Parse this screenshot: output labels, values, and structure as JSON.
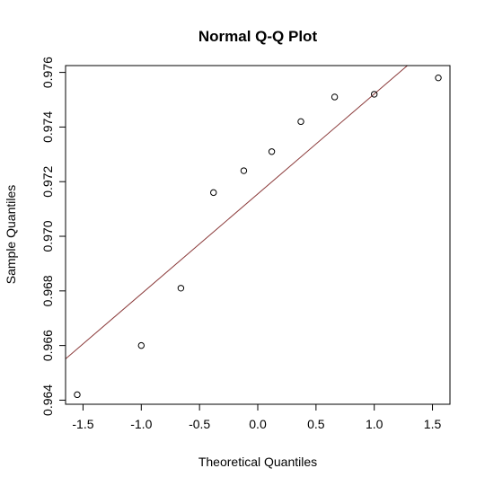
{
  "chart_data": {
    "type": "scatter",
    "title": "Normal Q-Q Plot",
    "xlabel": "Theoretical Quantiles",
    "ylabel": "Sample Quantiles",
    "xlim": [
      -1.65,
      1.65
    ],
    "ylim": [
      0.96385,
      0.97625
    ],
    "xticks": [
      -1.5,
      -1.0,
      -0.5,
      0.0,
      0.5,
      1.0,
      1.5
    ],
    "xtick_labels": [
      "-1.5",
      "-1.0",
      "-0.5",
      "0.0",
      "0.5",
      "1.0",
      "1.5"
    ],
    "yticks": [
      0.964,
      0.966,
      0.968,
      0.97,
      0.972,
      0.974,
      0.976
    ],
    "ytick_labels": [
      "0.964",
      "0.966",
      "0.968",
      "0.970",
      "0.972",
      "0.974",
      "0.976"
    ],
    "grid": false,
    "points": [
      {
        "x": -1.55,
        "y": 0.9642
      },
      {
        "x": -1.0,
        "y": 0.966
      },
      {
        "x": -0.66,
        "y": 0.9681
      },
      {
        "x": -0.38,
        "y": 0.9716
      },
      {
        "x": -0.12,
        "y": 0.9724
      },
      {
        "x": 0.12,
        "y": 0.9731
      },
      {
        "x": 0.37,
        "y": 0.9742
      },
      {
        "x": 0.66,
        "y": 0.9751
      },
      {
        "x": 1.0,
        "y": 0.9752
      },
      {
        "x": 1.55,
        "y": 0.9758
      }
    ],
    "reference_line": {
      "intercept": 0.97155,
      "slope": 0.00366,
      "color": "#8b3a3a"
    },
    "point_color": "#000000"
  }
}
